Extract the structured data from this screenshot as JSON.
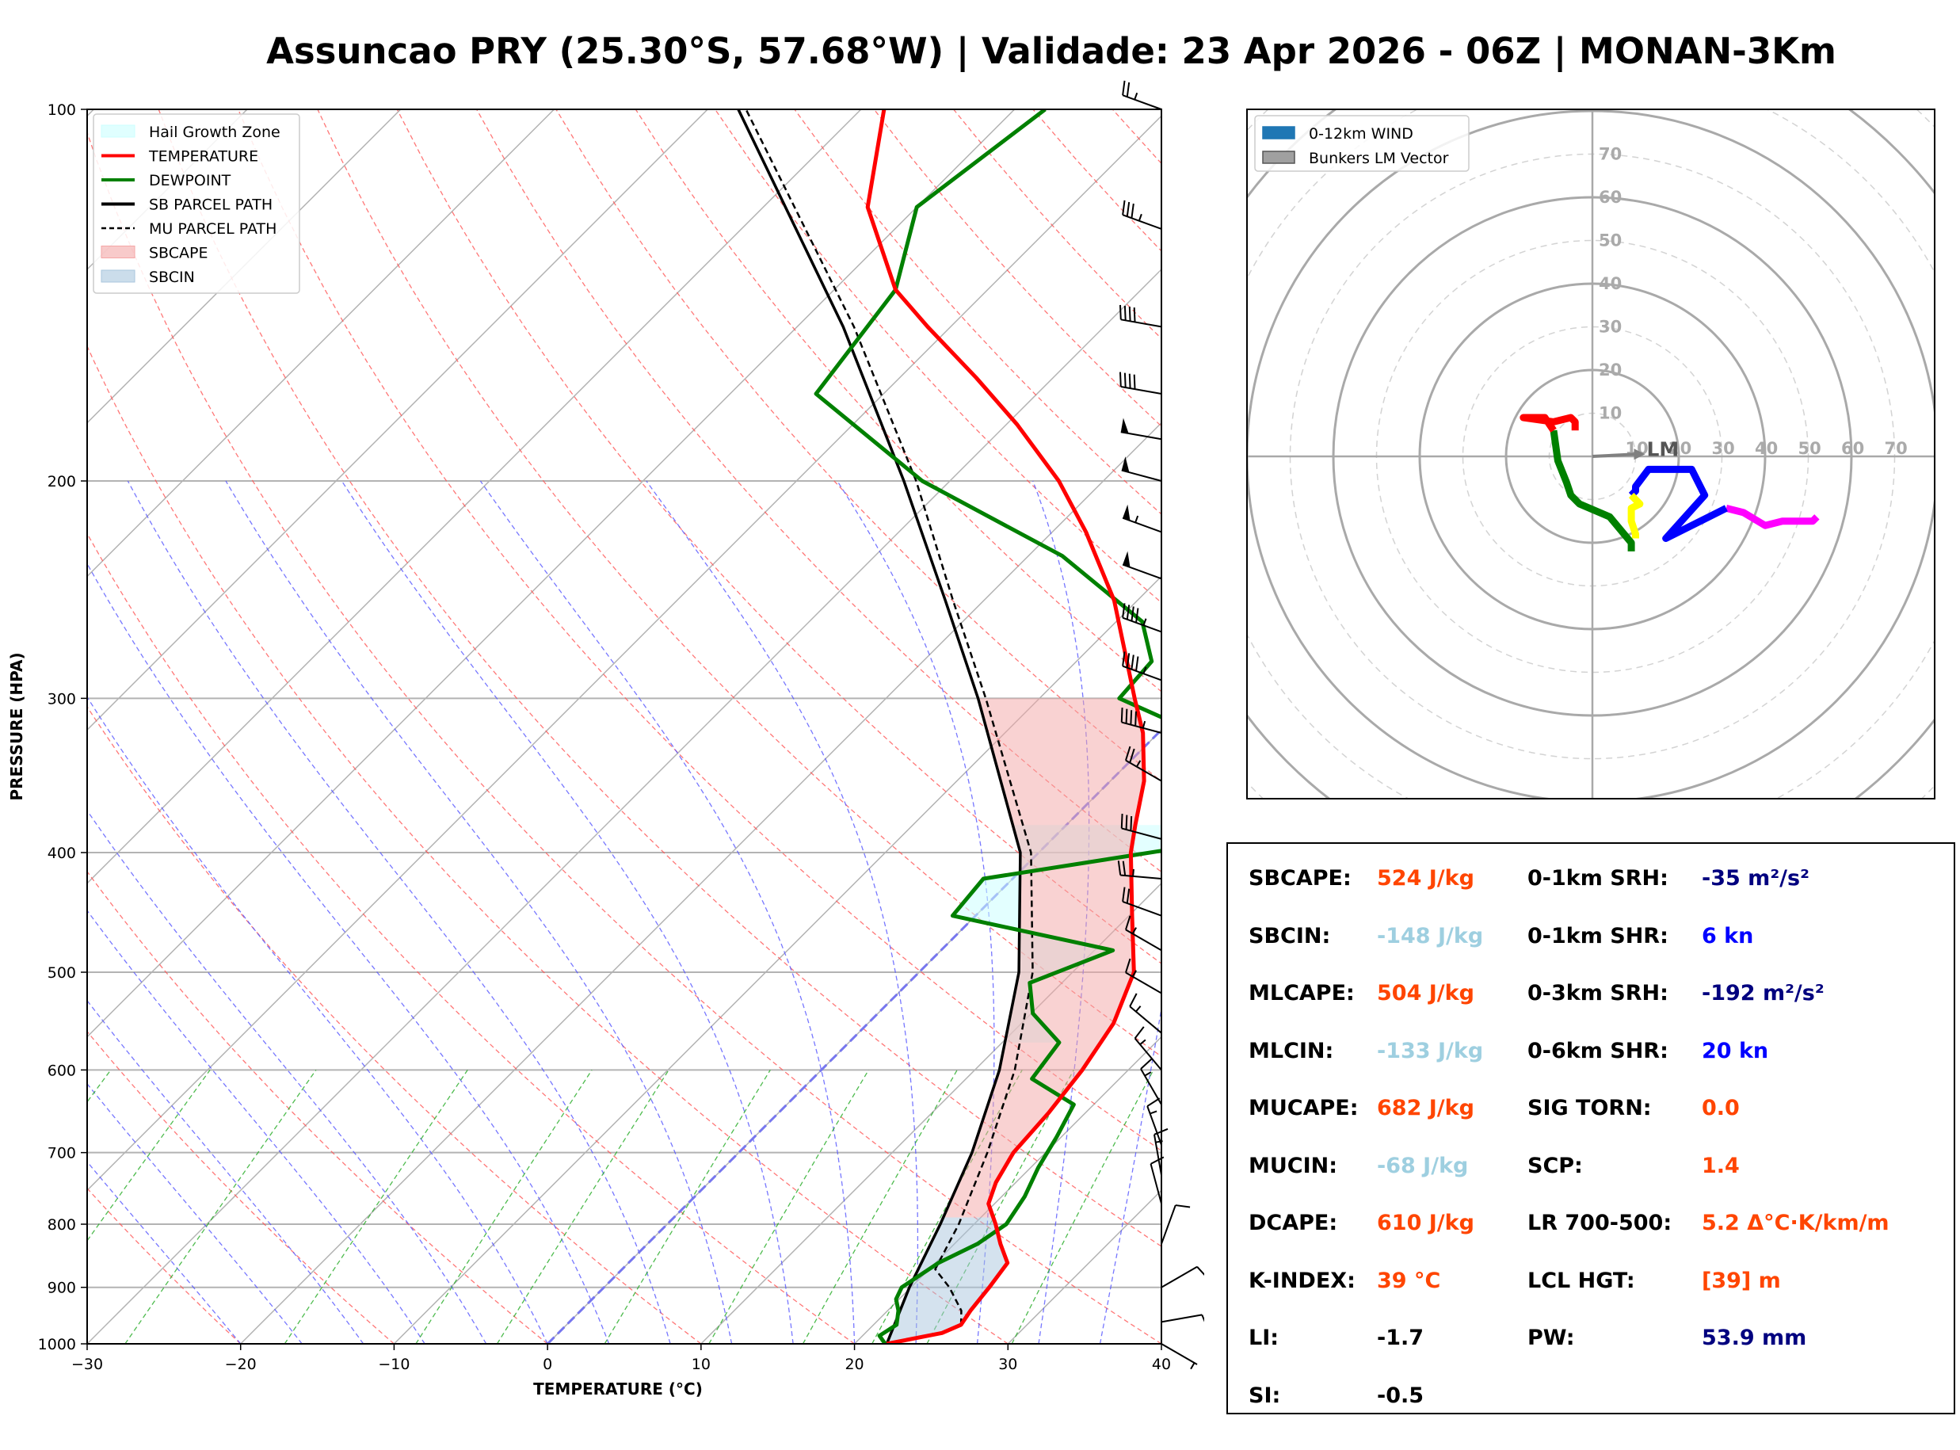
{
  "title": "Assuncao PRY (25.30°S, 57.68°W) | Validade: 23 Apr 2026 - 06Z | MONAN-3Km",
  "colors": {
    "temperature": "#ff0000",
    "dewpoint": "#008000",
    "sb_parcel": "#000000",
    "mu_parcel": "#000000",
    "sbcape": "#f4a6a6",
    "sbcin": "#a9c6dd",
    "hail_zone": "#ccffff",
    "cape_text": "#ff4500",
    "cin_text": "#9ecfe0",
    "srh_text": "#00007f",
    "shear_text": "#0000ff"
  },
  "chart_data": [
    {
      "type": "line",
      "subtype": "skew-t",
      "xlabel": "TEMPERATURE (°C)",
      "ylabel": "PRESSURE (HPA)",
      "xlim": [
        -30,
        40
      ],
      "ylim": [
        1000,
        100
      ],
      "yscale": "log",
      "x_ticks": [
        "−30",
        "−20",
        "−10",
        "0",
        "10",
        "20",
        "30",
        "40"
      ],
      "y_ticks": [
        "100",
        "200",
        "300",
        "400",
        "500",
        "600",
        "700",
        "800",
        "900",
        "1000"
      ],
      "legend_position": "top-left",
      "legend": [
        {
          "label": "Hail Growth Zone",
          "kind": "patch",
          "color": "#ccffff"
        },
        {
          "label": "TEMPERATURE",
          "kind": "line",
          "color": "#ff0000"
        },
        {
          "label": "DEWPOINT",
          "kind": "line",
          "color": "#008000"
        },
        {
          "label": "SB PARCEL PATH",
          "kind": "line",
          "color": "#000000"
        },
        {
          "label": "MU PARCEL PATH",
          "kind": "dashed",
          "color": "#000000"
        },
        {
          "label": "SBCAPE",
          "kind": "patch",
          "color": "#f4a6a6"
        },
        {
          "label": "SBCIN",
          "kind": "patch",
          "color": "#a9c6dd"
        }
      ],
      "series": [
        {
          "name": "TEMPERATURE",
          "points": [
            [
              1000,
              22.1
            ],
            [
              980,
              25.0
            ],
            [
              965,
              25.7
            ],
            [
              940,
              25.4
            ],
            [
              900,
              25.1
            ],
            [
              860,
              24.7
            ],
            [
              830,
              23.0
            ],
            [
              800,
              21.4
            ],
            [
              770,
              19.6
            ],
            [
              740,
              18.7
            ],
            [
              700,
              17.9
            ],
            [
              650,
              17.6
            ],
            [
              600,
              17.0
            ],
            [
              550,
              16.0
            ],
            [
              500,
              14.0
            ],
            [
              450,
              10.2
            ],
            [
              400,
              6.0
            ],
            [
              380,
              4.5
            ],
            [
              350,
              2.2
            ],
            [
              320,
              -1.0
            ],
            [
              300,
              -3.8
            ],
            [
              250,
              -11.5
            ],
            [
              220,
              -17.8
            ],
            [
              200,
              -22.9
            ],
            [
              180,
              -29.3
            ],
            [
              165,
              -35.0
            ],
            [
              150,
              -41.5
            ],
            [
              140,
              -46.0
            ],
            [
              120,
              -53.2
            ],
            [
              100,
              -58.5
            ]
          ]
        },
        {
          "name": "DEWPOINT",
          "points": [
            [
              1000,
              22.0
            ],
            [
              985,
              21.1
            ],
            [
              965,
              21.5
            ],
            [
              940,
              20.7
            ],
            [
              920,
              19.8
            ],
            [
              900,
              19.4
            ],
            [
              860,
              20.2
            ],
            [
              830,
              21.5
            ],
            [
              800,
              22.1
            ],
            [
              760,
              21.5
            ],
            [
              720,
              20.5
            ],
            [
              680,
              19.7
            ],
            [
              640,
              18.7
            ],
            [
              610,
              14.3
            ],
            [
              570,
              13.7
            ],
            [
              540,
              10.1
            ],
            [
              510,
              7.9
            ],
            [
              480,
              11.2
            ],
            [
              450,
              -1.5
            ],
            [
              420,
              -1.9
            ],
            [
              390,
              12.0
            ],
            [
              360,
              10.0
            ],
            [
              330,
              6.0
            ],
            [
              300,
              -4.8
            ],
            [
              280,
              -5.1
            ],
            [
              260,
              -8.3
            ],
            [
              230,
              -17.8
            ],
            [
              200,
              -31.8
            ],
            [
              170,
              -44.4
            ],
            [
              140,
              -46.0
            ],
            [
              120,
              -50.0
            ],
            [
              100,
              -48.0
            ]
          ]
        },
        {
          "name": "SB PARCEL PATH",
          "points": [
            [
              1000,
              22.1
            ],
            [
              900,
              19.9
            ],
            [
              800,
              17.8
            ],
            [
              700,
              15.2
            ],
            [
              600,
              11.6
            ],
            [
              500,
              6.5
            ],
            [
              400,
              -1.2
            ],
            [
              300,
              -14.0
            ],
            [
              250,
              -22.5
            ],
            [
              200,
              -33.0
            ],
            [
              150,
              -47.0
            ],
            [
              100,
              -68.0
            ]
          ]
        },
        {
          "name": "MU PARCEL PATH",
          "points": [
            [
              965,
              25.7
            ],
            [
              940,
              24.8
            ],
            [
              900,
              22.5
            ],
            [
              870,
              20.4
            ],
            [
              800,
              19.0
            ],
            [
              700,
              16.2
            ],
            [
              600,
              12.6
            ],
            [
              500,
              7.4
            ],
            [
              400,
              -0.5
            ],
            [
              300,
              -13.5
            ],
            [
              250,
              -22.0
            ],
            [
              200,
              -32.2
            ],
            [
              150,
              -46.3
            ],
            [
              100,
              -67.5
            ]
          ]
        }
      ],
      "hail_growth_zone": {
        "p_top": 380,
        "p_bottom": 570,
        "t_top": -30,
        "t_bottom": -10
      },
      "wind_barbs": [
        {
          "p": 100,
          "dir": 290,
          "spd": 25
        },
        {
          "p": 125,
          "dir": 290,
          "spd": 35
        },
        {
          "p": 150,
          "dir": 280,
          "spd": 40
        },
        {
          "p": 170,
          "dir": 280,
          "spd": 40
        },
        {
          "p": 185,
          "dir": 280,
          "spd": 50
        },
        {
          "p": 200,
          "dir": 285,
          "spd": 50
        },
        {
          "p": 220,
          "dir": 290,
          "spd": 55
        },
        {
          "p": 240,
          "dir": 290,
          "spd": 50
        },
        {
          "p": 265,
          "dir": 290,
          "spd": 45
        },
        {
          "p": 290,
          "dir": 290,
          "spd": 45
        },
        {
          "p": 320,
          "dir": 285,
          "spd": 45
        },
        {
          "p": 350,
          "dir": 300,
          "spd": 25
        },
        {
          "p": 390,
          "dir": 285,
          "spd": 30
        },
        {
          "p": 420,
          "dir": 275,
          "spd": 25
        },
        {
          "p": 450,
          "dir": 290,
          "spd": 20
        },
        {
          "p": 480,
          "dir": 300,
          "spd": 15
        },
        {
          "p": 520,
          "dir": 300,
          "spd": 15
        },
        {
          "p": 560,
          "dir": 310,
          "spd": 15
        },
        {
          "p": 600,
          "dir": 320,
          "spd": 15
        },
        {
          "p": 640,
          "dir": 330,
          "spd": 15
        },
        {
          "p": 690,
          "dir": 340,
          "spd": 15
        },
        {
          "p": 730,
          "dir": 350,
          "spd": 15
        },
        {
          "p": 770,
          "dir": 345,
          "spd": 10
        },
        {
          "p": 830,
          "dir": 20,
          "spd": 10
        },
        {
          "p": 900,
          "dir": 60,
          "spd": 10
        },
        {
          "p": 960,
          "dir": 80,
          "spd": 10
        },
        {
          "p": 1000,
          "dir": 120,
          "spd": 5
        }
      ]
    },
    {
      "type": "line",
      "subtype": "hodograph",
      "legend_position": "top-left",
      "legend": [
        {
          "label": "0-12km WIND",
          "kind": "patch",
          "color": "#1f77b4"
        },
        {
          "label": "Bunkers LM Vector",
          "kind": "patch",
          "color": "#a0a0a0"
        }
      ],
      "ring_labels_vertical": [
        "10",
        "20",
        "30",
        "40",
        "50",
        "60",
        "70"
      ],
      "ring_labels_horizontal": [
        "10",
        "20",
        "30",
        "40",
        "50",
        "60",
        "70"
      ],
      "lm_label": "LM",
      "lm_vector": [
        10,
        0.5
      ],
      "segments": [
        {
          "name": "0-3km",
          "color": "#ff00ff",
          "points": [
            [
              52,
              -14
            ],
            [
              51,
              -15
            ],
            [
              44,
              -15
            ],
            [
              40,
              -16
            ],
            [
              35,
              -13
            ],
            [
              31,
              -12
            ]
          ]
        },
        {
          "name": "3-6km",
          "color": "#0000ff",
          "points": [
            [
              31,
              -12
            ],
            [
              17,
              -19
            ],
            [
              26,
              -9
            ],
            [
              23,
              -3
            ],
            [
              13,
              -3
            ],
            [
              10,
              -7
            ],
            [
              10,
              -8
            ],
            [
              9,
              -9
            ]
          ]
        },
        {
          "name": "6-9km",
          "color": "#ffff00",
          "points": [
            [
              9,
              -9
            ],
            [
              11,
              -11
            ],
            [
              9,
              -12
            ],
            [
              9,
              -15
            ],
            [
              10,
              -18
            ],
            [
              10,
              -19
            ]
          ]
        },
        {
          "name": "9-12km",
          "color": "#008000",
          "points": [
            [
              9,
              -22
            ],
            [
              9,
              -20
            ],
            [
              4,
              -14
            ],
            [
              -3,
              -11
            ],
            [
              -5,
              -9
            ],
            [
              -6,
              -6
            ],
            [
              -8,
              -1
            ],
            [
              -9,
              6
            ]
          ]
        },
        {
          "name": "12km+",
          "color": "#ff0000",
          "points": [
            [
              -9,
              6
            ],
            [
              -11,
              9
            ],
            [
              -16,
              9
            ],
            [
              -9,
              8
            ],
            [
              -5,
              9
            ],
            [
              -4,
              8
            ],
            [
              -4,
              6
            ]
          ]
        }
      ],
      "ring_max": 80
    }
  ],
  "params": {
    "left": [
      {
        "label": "SBCAPE:",
        "value": "524 J/kg",
        "color": "#ff4500"
      },
      {
        "label": "SBCIN:",
        "value": "-148 J/kg",
        "color": "#9ecfe0"
      },
      {
        "label": "MLCAPE:",
        "value": "504 J/kg",
        "color": "#ff4500"
      },
      {
        "label": "MLCIN:",
        "value": "-133 J/kg",
        "color": "#9ecfe0"
      },
      {
        "label": "MUCAPE:",
        "value": "682 J/kg",
        "color": "#ff4500"
      },
      {
        "label": "MUCIN:",
        "value": "-68 J/kg",
        "color": "#9ecfe0"
      },
      {
        "label": "DCAPE:",
        "value": "610 J/kg",
        "color": "#ff4500"
      },
      {
        "label": "K-INDEX:",
        "value": "39 °C",
        "color": "#ff4500"
      },
      {
        "label": "LI:",
        "value": "-1.7",
        "color": "#000000"
      },
      {
        "label": "SI:",
        "value": "-0.5",
        "color": "#000000"
      }
    ],
    "right": [
      {
        "label": "0-1km SRH:",
        "value": "-35 m²/s²",
        "color": "#00007f"
      },
      {
        "label": "0-1km SHR:",
        "value": "6 kn",
        "color": "#0000ff"
      },
      {
        "label": "0-3km SRH:",
        "value": "-192 m²/s²",
        "color": "#00007f"
      },
      {
        "label": "0-6km SHR:",
        "value": "20 kn",
        "color": "#0000ff"
      },
      {
        "label": "SIG TORN:",
        "value": "0.0",
        "color": "#ff4500"
      },
      {
        "label": "SCP:",
        "value": "1.4",
        "color": "#ff4500"
      },
      {
        "label": "LR 700-500:",
        "value": "5.2 Δ°C·K/km/m",
        "color": "#ff4500"
      },
      {
        "label": "LCL HGT:",
        "value": "[39] m",
        "color": "#ff4500"
      },
      {
        "label": "PW:",
        "value": "53.9 mm",
        "color": "#00007f"
      }
    ]
  }
}
